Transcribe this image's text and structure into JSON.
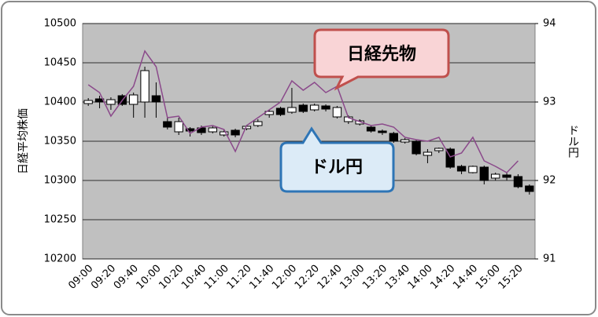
{
  "chart_data": {
    "type": "candlestick",
    "y_label": "日経平均株価",
    "y2_label": "ドル円",
    "annotations": [
      "日経先物",
      "ドル円"
    ],
    "categories": [
      "09:00",
      null,
      "09:20",
      null,
      "09:40",
      null,
      "10:00",
      null,
      "10:20",
      null,
      "10:40",
      null,
      "11:00",
      null,
      "11:20",
      null,
      "11:40",
      null,
      "12:00",
      null,
      "12:20",
      null,
      "12:40",
      null,
      "13:00",
      null,
      "13:20",
      null,
      "13:40",
      null,
      "14:00",
      null,
      "14:20",
      null,
      "14:40",
      null,
      "15:00",
      null,
      "15:20",
      null
    ],
    "open": [
      10398,
      10404,
      10397,
      10408,
      10397,
      10400,
      10408,
      10375,
      10362,
      10366,
      10367,
      10362,
      10358,
      10364,
      10366,
      10370,
      10384,
      10392,
      10387,
      10396,
      10390,
      10395,
      10381,
      10375,
      10372,
      10368,
      10363,
      10360,
      10349,
      10350,
      10332,
      10338,
      10340,
      10318,
      10310,
      10317,
      10303,
      10307,
      10305,
      10293
    ],
    "high": [
      10405,
      10408,
      10406,
      10410,
      10412,
      10445,
      10425,
      10380,
      10380,
      10368,
      10370,
      10370,
      10365,
      10366,
      10371,
      10378,
      10390,
      10394,
      10418,
      10398,
      10398,
      10397,
      10395,
      10383,
      10378,
      10370,
      10365,
      10362,
      10354,
      10352,
      10340,
      10342,
      10342,
      10320,
      10319,
      10319,
      10310,
      10310,
      10308,
      10295
    ],
    "low": [
      10395,
      10392,
      10390,
      10395,
      10380,
      10380,
      10380,
      10365,
      10358,
      10356,
      10358,
      10360,
      10356,
      10355,
      10364,
      10368,
      10380,
      10382,
      10385,
      10386,
      10388,
      10388,
      10379,
      10372,
      10370,
      10361,
      10358,
      10348,
      10347,
      10332,
      10322,
      10335,
      10315,
      10308,
      10309,
      10295,
      10300,
      10300,
      10290,
      10282
    ],
    "close": [
      10402,
      10400,
      10403,
      10397,
      10409,
      10440,
      10400,
      10368,
      10375,
      10363,
      10361,
      10367,
      10362,
      10358,
      10369,
      10375,
      10388,
      10384,
      10393,
      10388,
      10396,
      10391,
      10393,
      10381,
      10376,
      10363,
      10361,
      10350,
      10352,
      10334,
      10336,
      10341,
      10317,
      10312,
      10318,
      10300,
      10308,
      10304,
      10292,
      10286
    ],
    "up_color": "#ffffff",
    "down_color": "#000000",
    "line": {
      "axis": "y2",
      "color": "#8b4a8b",
      "values": [
        93.22,
        93.12,
        92.82,
        93.02,
        93.2,
        93.65,
        93.45,
        92.8,
        92.82,
        92.6,
        92.68,
        92.7,
        92.65,
        92.37,
        92.7,
        92.8,
        92.9,
        93.0,
        93.27,
        93.15,
        93.25,
        93.12,
        93.2,
        92.8,
        92.75,
        92.7,
        92.72,
        92.68,
        92.55,
        92.52,
        92.5,
        92.55,
        92.3,
        92.35,
        92.55,
        92.25,
        92.18,
        92.1,
        92.25,
        null
      ]
    },
    "ylim": [
      10200,
      10500
    ],
    "yticks": [
      10200,
      10250,
      10300,
      10350,
      10400,
      10450,
      10500
    ],
    "y2lim": [
      91,
      94
    ],
    "y2ticks": [
      91,
      92,
      93,
      94
    ],
    "grid": true,
    "plot_color": "#c0c0c0"
  }
}
